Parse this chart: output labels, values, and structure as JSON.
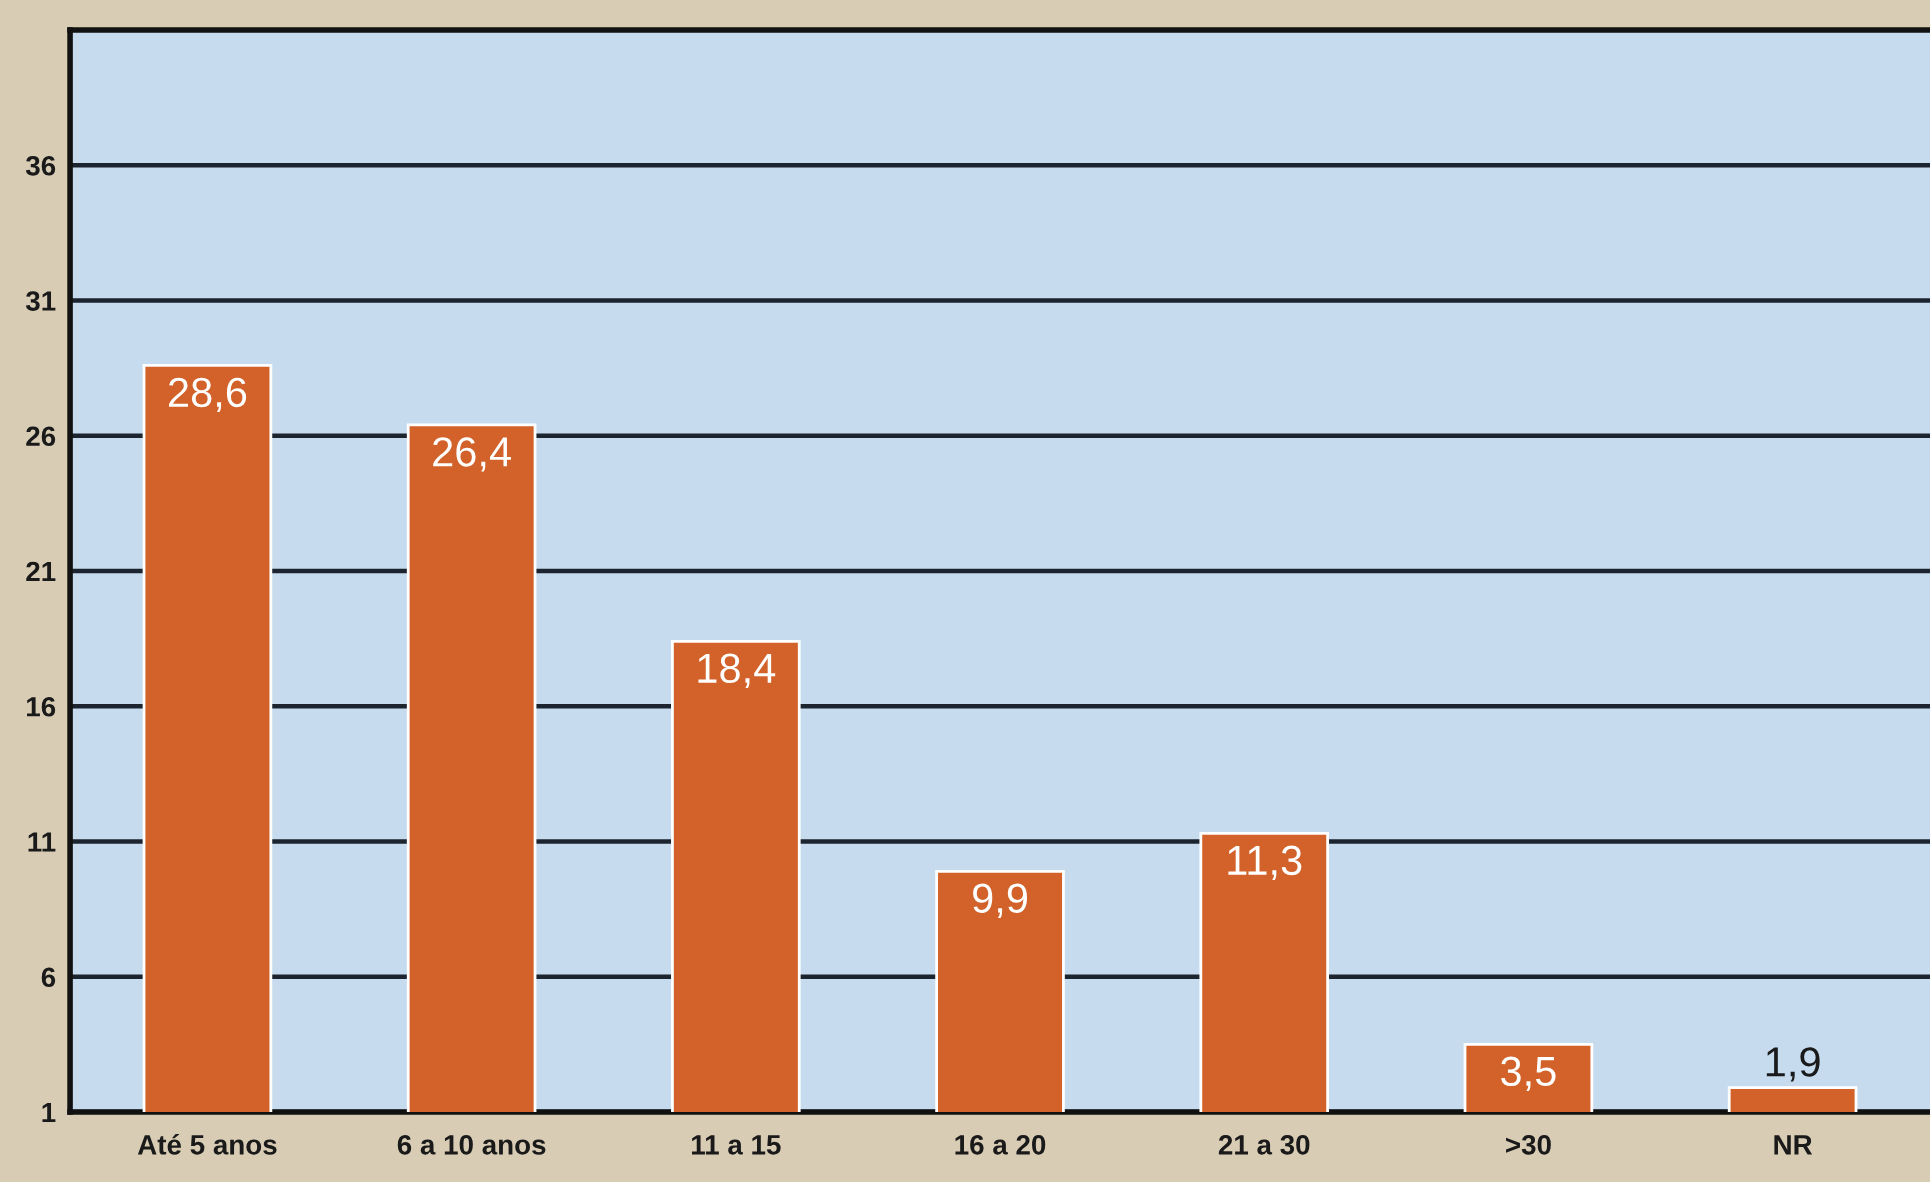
{
  "chart_data": {
    "type": "bar",
    "categories": [
      "Até 5 anos",
      "6 a 10 anos",
      "11 a 15",
      "16 a 20",
      "21 a 30",
      ">30",
      "NR"
    ],
    "values": [
      28.6,
      26.4,
      18.4,
      9.9,
      11.3,
      3.5,
      1.9
    ],
    "value_labels": [
      "28,6",
      "26,4",
      "18,4",
      "9,9",
      "11,3",
      "3,5",
      "1,9"
    ],
    "color": "#d2622a",
    "ylim": [
      1,
      41
    ],
    "yticks": [
      1,
      6,
      11,
      16,
      21,
      26,
      31,
      36
    ],
    "grid": "y"
  }
}
